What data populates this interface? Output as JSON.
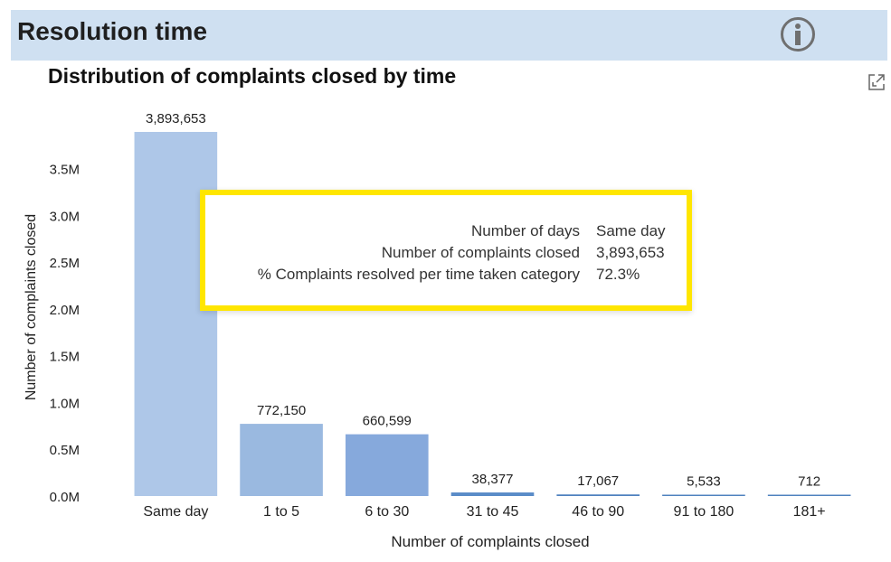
{
  "header": {
    "title": "Resolution time",
    "info_icon": "info-icon",
    "background": "#cfe0f1"
  },
  "chart_title": "Distribution of complaints closed by time",
  "expand_icon": "expand-icon",
  "tooltip": {
    "rows": [
      {
        "label": "Number of days",
        "value": "Same day"
      },
      {
        "label": "Number of complaints closed",
        "value": "3,893,653"
      },
      {
        "label": "% Complaints resolved per time taken category",
        "value": "72.3%"
      }
    ],
    "border_color": "#ffe600"
  },
  "chart_data": {
    "type": "bar",
    "title": "Distribution of complaints closed by time",
    "xlabel": "Number of complaints closed",
    "ylabel": "Number of complaints closed",
    "categories": [
      "Same day",
      "1 to 5",
      "6 to 30",
      "31 to 45",
      "46 to 90",
      "91 to 180",
      "181+"
    ],
    "values": [
      3893653,
      772150,
      660599,
      38377,
      17067,
      5533,
      712
    ],
    "value_labels": [
      "3,893,653",
      "772,150",
      "660,599",
      "38,377",
      "17,067",
      "5,533",
      "712"
    ],
    "y_ticks": [
      0,
      500000,
      1000000,
      1500000,
      2000000,
      2500000,
      3000000,
      3500000
    ],
    "y_tick_labels": [
      "0.0M",
      "0.5M",
      "1.0M",
      "1.5M",
      "2.0M",
      "2.5M",
      "3.0M",
      "3.5M"
    ],
    "ylim": [
      0,
      3893653
    ],
    "grid": false,
    "bar_colors": [
      "#aec7e8",
      "#9ab9e0",
      "#86a9dc",
      "#5a8cc8",
      "#4f82bf",
      "#4f82bf",
      "#4f82bf"
    ]
  }
}
